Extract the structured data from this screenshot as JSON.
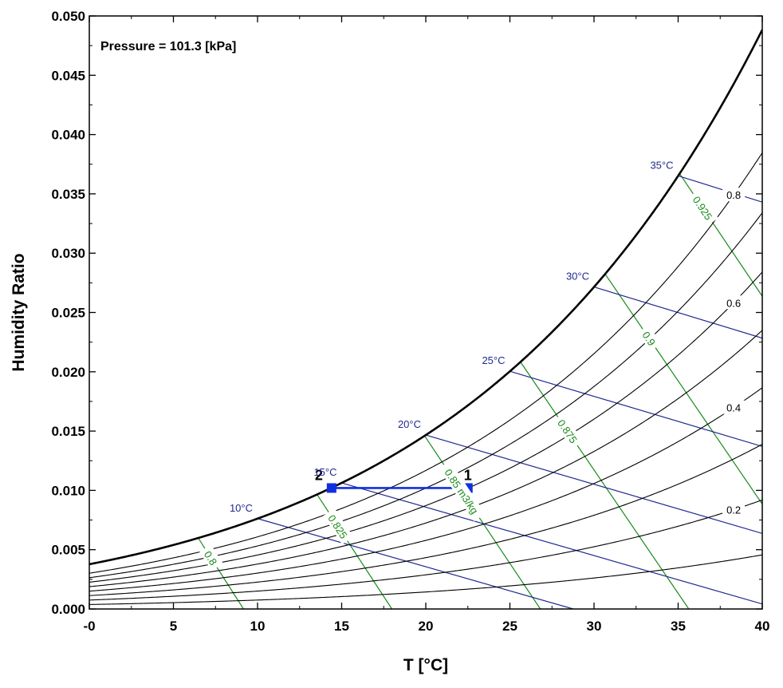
{
  "chart_data": {
    "type": "line",
    "title": "",
    "xlabel": "T [°C]",
    "ylabel": "Humidity Ratio",
    "xlim": [
      0,
      40
    ],
    "ylim": [
      0,
      0.05
    ],
    "x_ticks": [
      0,
      5,
      10,
      15,
      20,
      25,
      30,
      35,
      40
    ],
    "x_tick_labels": [
      "-0",
      "5",
      "10",
      "15",
      "20",
      "25",
      "30",
      "35",
      "40"
    ],
    "y_ticks": [
      0,
      0.005,
      0.01,
      0.015,
      0.02,
      0.025,
      0.03,
      0.035,
      0.04,
      0.045,
      0.05
    ],
    "y_tick_labels": [
      "0.000",
      "0.005",
      "0.010",
      "0.015",
      "0.020",
      "0.025",
      "0.030",
      "0.035",
      "0.040",
      "0.045",
      "0.050"
    ],
    "grid": false,
    "annotation": "Pressure = 101.3 [kPa]",
    "pressure_kpa": 101.3,
    "relative_humidity_lines": [
      {
        "label": "",
        "rh": 1.0
      },
      {
        "label": "0.8",
        "rh": 0.8
      },
      {
        "label": "",
        "rh": 0.7
      },
      {
        "label": "0.6",
        "rh": 0.6
      },
      {
        "label": "",
        "rh": 0.5
      },
      {
        "label": "0.4",
        "rh": 0.4
      },
      {
        "label": "",
        "rh": 0.3
      },
      {
        "label": "0.2",
        "rh": 0.2
      },
      {
        "label": "",
        "rh": 0.1
      }
    ],
    "wet_bulb_lines": [
      {
        "label": "10°C",
        "twb": 10
      },
      {
        "label": "15°C",
        "twb": 15
      },
      {
        "label": "20°C",
        "twb": 20
      },
      {
        "label": "25°C",
        "twb": 25
      },
      {
        "label": "30°C",
        "twb": 30
      },
      {
        "label": "35°C",
        "twb": 35
      }
    ],
    "specific_volume_lines": [
      {
        "label": "0.8",
        "v": 0.8
      },
      {
        "label": "0.825",
        "v": 0.825
      },
      {
        "label": "0.85 m3/kg",
        "v": 0.85
      },
      {
        "label": "0.875",
        "v": 0.875
      },
      {
        "label": "0.9",
        "v": 0.9
      },
      {
        "label": "0.925",
        "v": 0.925
      }
    ],
    "process": {
      "points": [
        {
          "label": "1",
          "T": 22.5,
          "w": 0.0102
        },
        {
          "label": "2",
          "T": 14.4,
          "w": 0.0102
        }
      ]
    },
    "colors": {
      "rh": "#000000",
      "wet_bulb": "#1f2a8f",
      "volume": "#1a8a1a",
      "process": "#1030e0"
    }
  }
}
